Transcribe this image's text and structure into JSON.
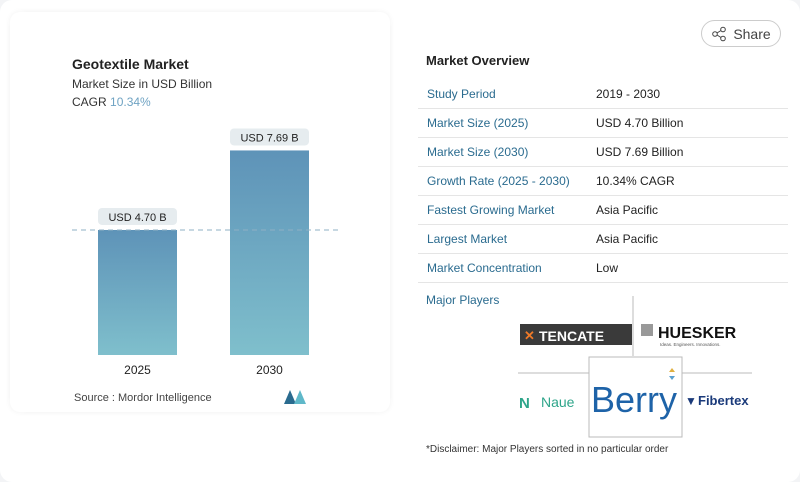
{
  "share_label": "Share",
  "chart_title": "Geotextile Market",
  "chart_subtitle": "Market Size in USD Billion",
  "cagr_label": "CAGR",
  "cagr_value": "10.34%",
  "source": "Source :  Mordor Intelligence",
  "chart_data": {
    "type": "bar",
    "categories": [
      "2025",
      "2030"
    ],
    "values": [
      4.7,
      7.69
    ],
    "data_labels": [
      "USD 4.70 B",
      "USD 7.69 B"
    ],
    "ylim": [
      0,
      8
    ],
    "colors": [
      "#5e93b8",
      "#7bb9c9"
    ]
  },
  "overview": {
    "title": "Market Overview",
    "rows": [
      {
        "k": "Study Period",
        "v": "2019 - 2030"
      },
      {
        "k": "Market Size (2025)",
        "v": "USD 4.70 Billion"
      },
      {
        "k": "Market Size (2030)",
        "v": "USD 7.69 Billion"
      },
      {
        "k": "Growth Rate (2025 - 2030)",
        "v": "10.34% CAGR"
      },
      {
        "k": "Fastest Growing Market",
        "v": "Asia Pacific"
      },
      {
        "k": "Largest Market",
        "v": "Asia Pacific"
      },
      {
        "k": "Market Concentration",
        "v": "Low"
      }
    ]
  },
  "major_players_label": "Major Players",
  "players": [
    "TENCATE",
    "HUESKER",
    "Naue",
    "Berry",
    "Fibertex"
  ],
  "huesker_tagline": "Ideas. Engineers. Innovations.",
  "disclaimer": "*Disclaimer: Major Players sorted in no particular order"
}
